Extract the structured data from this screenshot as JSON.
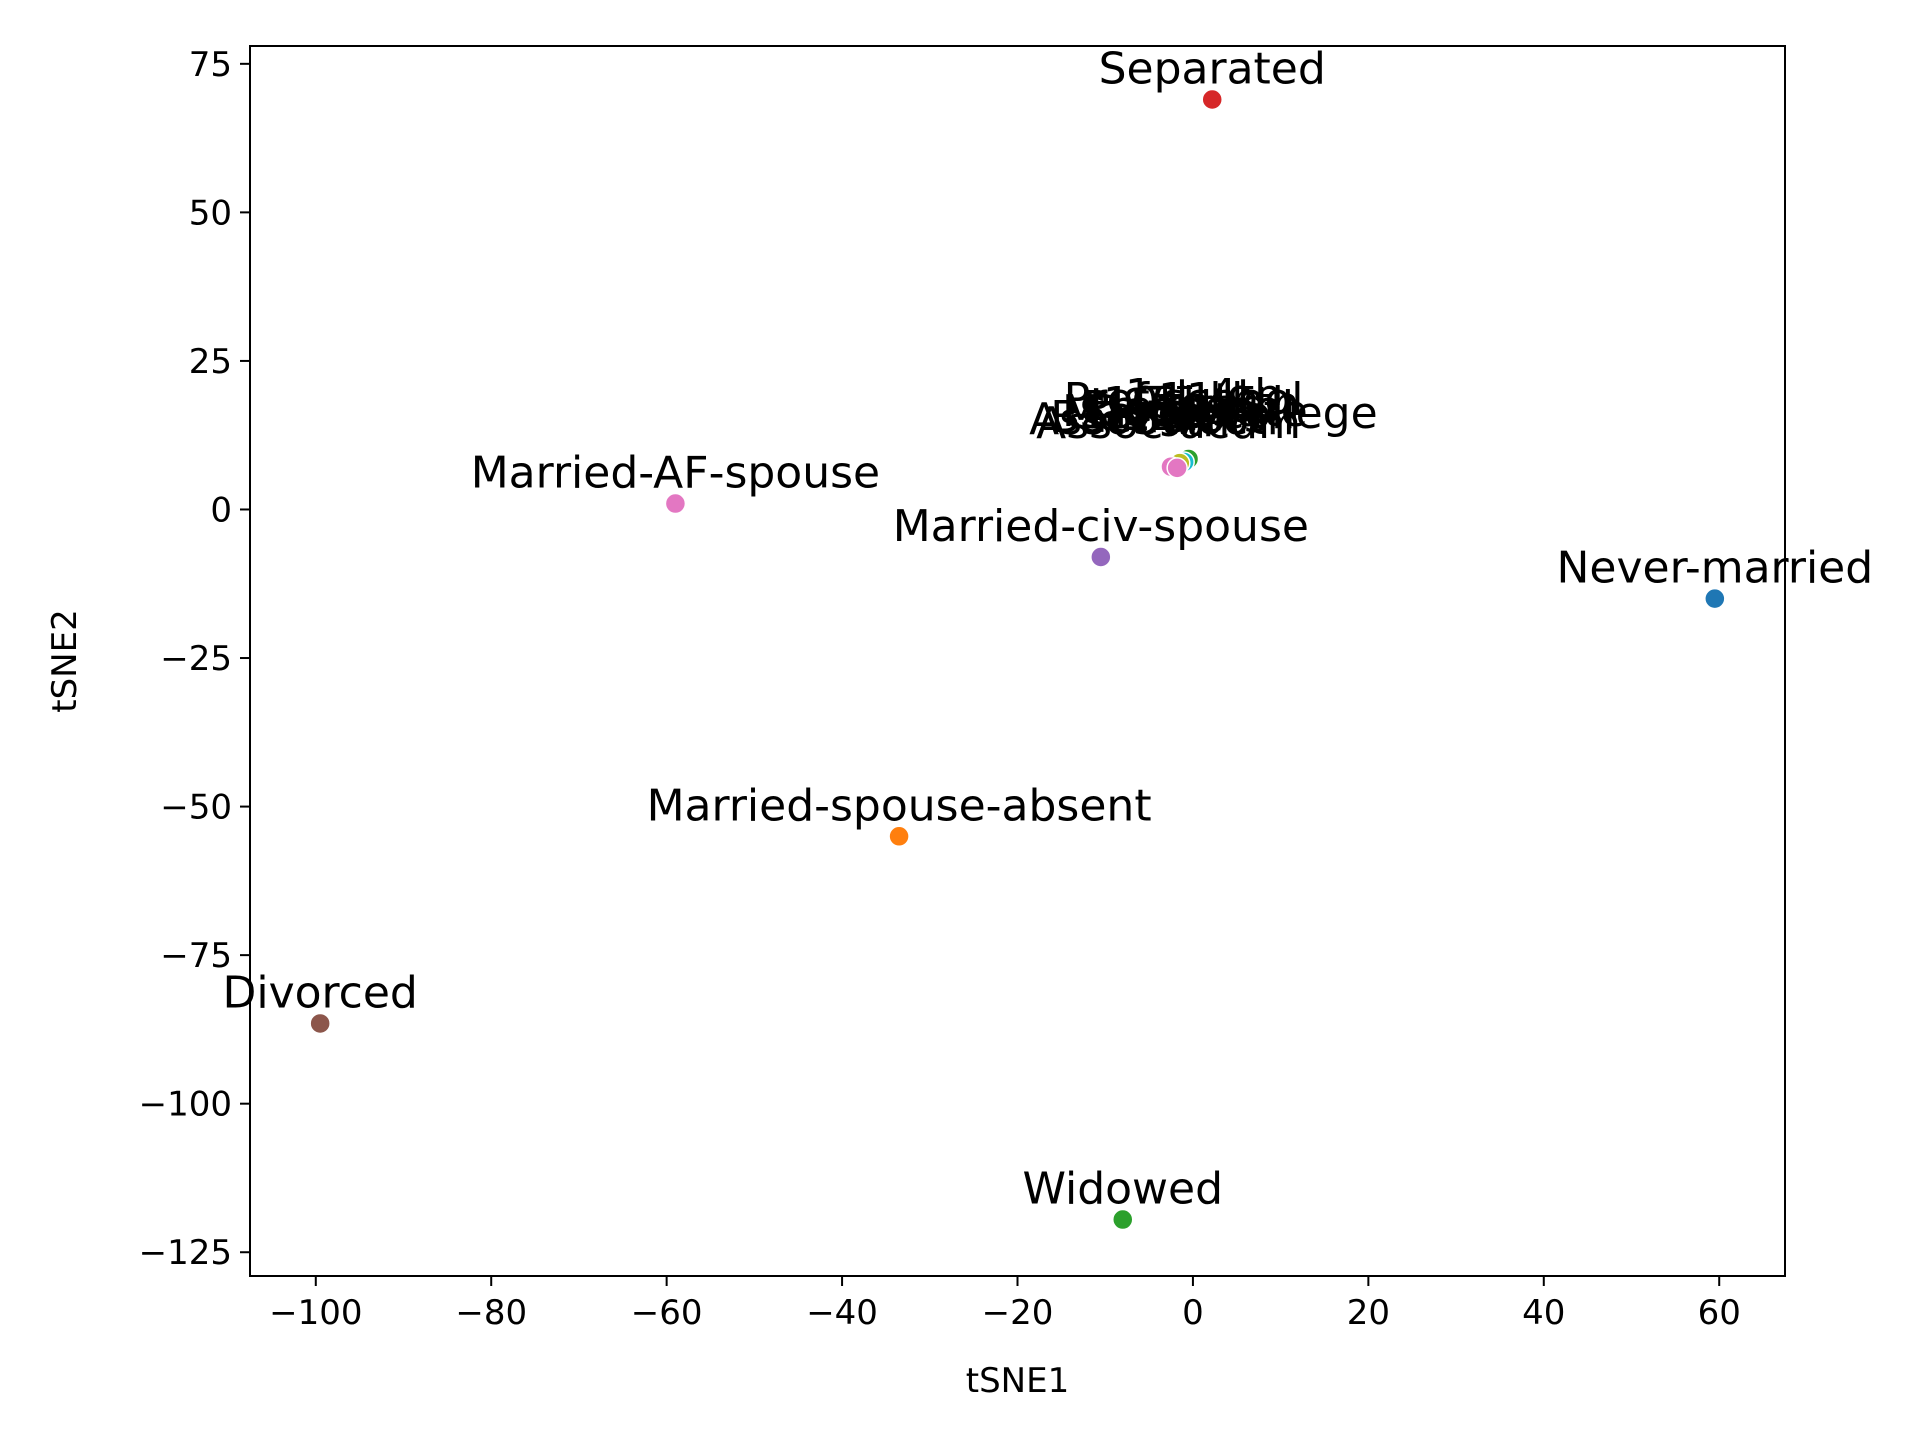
{
  "chart_data": {
    "type": "scatter",
    "xlabel": "tSNE1",
    "ylabel": "tSNE2",
    "xlim": [
      -107.5,
      67.5
    ],
    "ylim": [
      -129,
      78
    ],
    "grid": false,
    "legend": "none",
    "x_ticks": [
      -100,
      -80,
      -60,
      -40,
      -20,
      0,
      20,
      40,
      60
    ],
    "y_ticks": [
      -125,
      -100,
      -75,
      -50,
      -25,
      0,
      25,
      50,
      75
    ],
    "x_tick_labels": [
      "−100",
      "−80",
      "−60",
      "−40",
      "−20",
      "0",
      "20",
      "40",
      "60"
    ],
    "y_tick_labels": [
      "−125",
      "−100",
      "−75",
      "−50",
      "−25",
      "0",
      "25",
      "50",
      "75"
    ],
    "points": [
      {
        "label": "Separated",
        "x": 2.2,
        "y": 69,
        "color": "#d62728"
      },
      {
        "label": "Married-AF-spouse",
        "x": -59,
        "y": 1,
        "color": "#e377c2"
      },
      {
        "label": "Married-civ-spouse",
        "x": -10.5,
        "y": -8,
        "color": "#9467bd"
      },
      {
        "label": "Never-married",
        "x": 59.5,
        "y": -15,
        "color": "#1f77b4"
      },
      {
        "label": "Married-spouse-absent",
        "x": -33.5,
        "y": -55,
        "color": "#ff7f0e"
      },
      {
        "label": "Divorced",
        "x": -99.5,
        "y": -86.5,
        "color": "#8c564b"
      },
      {
        "label": "Widowed",
        "x": -8,
        "y": -119.5,
        "color": "#2ca02c"
      }
    ],
    "cluster": {
      "labels": [
        "Bachelors",
        "HS-grad",
        "11th",
        "Masters",
        "9th",
        "Some-college",
        "Assoc-acdm",
        "Assoc-voc",
        "7th-8th",
        "Doctorate",
        "Prof-school",
        "5th-6th",
        "10th",
        "1st-4th",
        "Preschool",
        "12th"
      ],
      "points": [
        {
          "x": -0.5,
          "y": 8.5,
          "color": "#2ca02c"
        },
        {
          "x": -1.0,
          "y": 8.0,
          "color": "#17becf"
        },
        {
          "x": -1.5,
          "y": 7.8,
          "color": "#bcbd22"
        },
        {
          "x": -2.5,
          "y": 7.2,
          "color": "#e377c2"
        },
        {
          "x": -1.8,
          "y": 7.0,
          "color": "#e377c2"
        }
      ]
    }
  }
}
